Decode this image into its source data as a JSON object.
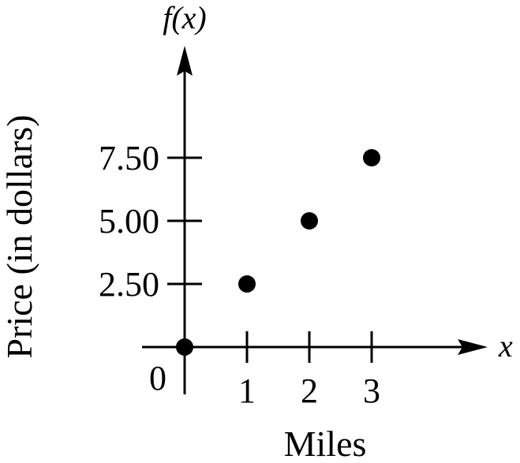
{
  "chart_data": {
    "type": "scatter",
    "xlabel": "Miles",
    "ylabel": "Price (in dollars)",
    "x_axis_name": "x",
    "y_axis_name": "f(x)",
    "origin_label": "0",
    "x_ticks": [
      {
        "value": 1,
        "label": "1"
      },
      {
        "value": 2,
        "label": "2"
      },
      {
        "value": 3,
        "label": "3"
      }
    ],
    "y_ticks": [
      {
        "value": 2.5,
        "label": "2.50"
      },
      {
        "value": 5.0,
        "label": "5.00"
      },
      {
        "value": 7.5,
        "label": "7.50"
      }
    ],
    "points": [
      {
        "x": 0,
        "y": 0
      },
      {
        "x": 1,
        "y": 2.5
      },
      {
        "x": 2,
        "y": 5.0
      },
      {
        "x": 3,
        "y": 7.5
      }
    ],
    "grid": false,
    "legend": "none",
    "colors": {
      "ink": "#000000",
      "background": "#ffffff"
    }
  }
}
